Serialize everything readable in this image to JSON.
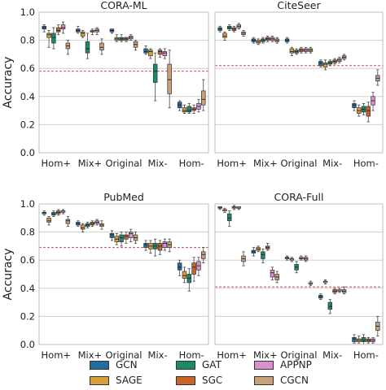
{
  "figure": {
    "ylabel": "Accuracy",
    "xticks": [
      "Hom+",
      "Mix+",
      "Original",
      "Mix-",
      "Hom-"
    ],
    "yticks": [
      "0.0",
      "0.2",
      "0.4",
      "0.6",
      "0.8",
      "1.0"
    ],
    "reference_line_color": "#c44e52"
  },
  "legend": [
    {
      "name": "GCN",
      "color": "#1f6e9c"
    },
    {
      "name": "GAT",
      "color": "#1b8a6b"
    },
    {
      "name": "APPNP",
      "color": "#d98fd0"
    },
    {
      "name": "SAGE",
      "color": "#d9a03a"
    },
    {
      "name": "SGC",
      "color": "#c86428"
    },
    {
      "name": "CGCN",
      "color": "#caa07a"
    }
  ],
  "chart_data": [
    {
      "type": "box",
      "title": "CORA-ML",
      "ylim": [
        0,
        1
      ],
      "ylabel": "Accuracy",
      "categories": [
        "Hom+",
        "Mix+",
        "Original",
        "Mix-",
        "Hom-"
      ],
      "reference_line": 0.58,
      "series": [
        {
          "name": "GCN",
          "boxes": [
            [
              0.86,
              0.88,
              0.89,
              0.9,
              0.91
            ],
            [
              0.85,
              0.86,
              0.87,
              0.88,
              0.9
            ],
            [
              0.85,
              0.86,
              0.87,
              0.88,
              0.88
            ],
            [
              0.7,
              0.71,
              0.72,
              0.74,
              0.76
            ],
            [
              0.3,
              0.32,
              0.34,
              0.36,
              0.37
            ]
          ]
        },
        {
          "name": "SAGE",
          "boxes": [
            [
              0.75,
              0.82,
              0.84,
              0.85,
              0.87
            ],
            [
              0.82,
              0.83,
              0.85,
              0.86,
              0.87
            ],
            [
              0.79,
              0.8,
              0.81,
              0.82,
              0.84
            ],
            [
              0.67,
              0.69,
              0.72,
              0.73,
              0.74
            ],
            [
              0.28,
              0.29,
              0.3,
              0.32,
              0.34
            ]
          ]
        },
        {
          "name": "GAT",
          "boxes": [
            [
              0.74,
              0.78,
              0.82,
              0.85,
              0.89
            ],
            [
              0.67,
              0.71,
              0.74,
              0.79,
              0.85
            ],
            [
              0.79,
              0.8,
              0.81,
              0.82,
              0.84
            ],
            [
              0.37,
              0.5,
              0.58,
              0.63,
              0.71
            ],
            [
              0.28,
              0.29,
              0.3,
              0.33,
              0.35
            ]
          ]
        },
        {
          "name": "SGC",
          "boxes": [
            [
              0.84,
              0.86,
              0.87,
              0.89,
              0.91
            ],
            [
              0.84,
              0.86,
              0.86,
              0.87,
              0.88
            ],
            [
              0.79,
              0.8,
              0.81,
              0.82,
              0.82
            ],
            [
              0.68,
              0.7,
              0.72,
              0.73,
              0.74
            ],
            [
              0.28,
              0.3,
              0.31,
              0.32,
              0.34
            ]
          ]
        },
        {
          "name": "APPNP",
          "boxes": [
            [
              0.85,
              0.88,
              0.89,
              0.91,
              0.93
            ],
            [
              0.84,
              0.86,
              0.87,
              0.88,
              0.89
            ],
            [
              0.8,
              0.81,
              0.82,
              0.83,
              0.84
            ],
            [
              0.67,
              0.69,
              0.71,
              0.72,
              0.74
            ],
            [
              0.29,
              0.31,
              0.33,
              0.35,
              0.38
            ]
          ]
        },
        {
          "name": "CGCN",
          "boxes": [
            [
              0.7,
              0.74,
              0.76,
              0.78,
              0.8
            ],
            [
              0.7,
              0.73,
              0.75,
              0.78,
              0.81
            ],
            [
              0.73,
              0.75,
              0.77,
              0.79,
              0.8
            ],
            [
              0.32,
              0.42,
              0.52,
              0.63,
              0.73
            ],
            [
              0.3,
              0.34,
              0.38,
              0.44,
              0.52
            ]
          ]
        }
      ]
    },
    {
      "type": "box",
      "title": "CiteSeer",
      "ylim": [
        0,
        1
      ],
      "categories": [
        "Hom+",
        "Mix+",
        "Original",
        "Mix-",
        "Hom-"
      ],
      "reference_line": 0.62,
      "series": [
        {
          "name": "GCN",
          "boxes": [
            [
              0.86,
              0.87,
              0.88,
              0.89,
              0.9
            ],
            [
              0.78,
              0.79,
              0.8,
              0.81,
              0.82
            ],
            [
              0.78,
              0.79,
              0.8,
              0.81,
              0.82
            ],
            [
              0.61,
              0.62,
              0.64,
              0.65,
              0.66
            ],
            [
              0.3,
              0.32,
              0.34,
              0.35,
              0.37
            ]
          ]
        },
        {
          "name": "SAGE",
          "boxes": [
            [
              0.8,
              0.82,
              0.83,
              0.85,
              0.86
            ],
            [
              0.77,
              0.78,
              0.79,
              0.8,
              0.81
            ],
            [
              0.69,
              0.71,
              0.72,
              0.74,
              0.75
            ],
            [
              0.59,
              0.61,
              0.63,
              0.64,
              0.66
            ],
            [
              0.26,
              0.28,
              0.3,
              0.32,
              0.34
            ]
          ]
        },
        {
          "name": "GAT",
          "boxes": [
            [
              0.87,
              0.88,
              0.89,
              0.9,
              0.91
            ],
            [
              0.78,
              0.79,
              0.8,
              0.81,
              0.82
            ],
            [
              0.7,
              0.71,
              0.72,
              0.73,
              0.74
            ],
            [
              0.62,
              0.63,
              0.64,
              0.65,
              0.66
            ],
            [
              0.27,
              0.29,
              0.31,
              0.33,
              0.35
            ]
          ]
        },
        {
          "name": "SGC",
          "boxes": [
            [
              0.86,
              0.87,
              0.88,
              0.89,
              0.9
            ],
            [
              0.79,
              0.8,
              0.81,
              0.82,
              0.83
            ],
            [
              0.71,
              0.72,
              0.73,
              0.74,
              0.75
            ],
            [
              0.63,
              0.64,
              0.65,
              0.66,
              0.67
            ],
            [
              0.22,
              0.26,
              0.3,
              0.33,
              0.36
            ]
          ]
        },
        {
          "name": "APPNP",
          "boxes": [
            [
              0.88,
              0.89,
              0.9,
              0.91,
              0.92
            ],
            [
              0.79,
              0.8,
              0.81,
              0.82,
              0.83
            ],
            [
              0.71,
              0.72,
              0.73,
              0.74,
              0.75
            ],
            [
              0.64,
              0.65,
              0.66,
              0.67,
              0.68
            ],
            [
              0.3,
              0.34,
              0.37,
              0.4,
              0.43
            ]
          ]
        },
        {
          "name": "CGCN",
          "boxes": [
            [
              0.83,
              0.84,
              0.85,
              0.86,
              0.87
            ],
            [
              0.78,
              0.79,
              0.8,
              0.81,
              0.82
            ],
            [
              0.71,
              0.72,
              0.73,
              0.74,
              0.75
            ],
            [
              0.66,
              0.67,
              0.68,
              0.69,
              0.7
            ],
            [
              0.48,
              0.51,
              0.53,
              0.55,
              0.59
            ]
          ]
        }
      ]
    },
    {
      "type": "box",
      "title": "PubMed",
      "ylim": [
        0,
        1
      ],
      "ylabel": "Accuracy",
      "categories": [
        "Hom+",
        "Mix+",
        "Original",
        "Mix-",
        "Hom-"
      ],
      "reference_line": 0.69,
      "series": [
        {
          "name": "GCN",
          "boxes": [
            [
              0.92,
              0.93,
              0.94,
              0.94,
              0.95
            ],
            [
              0.84,
              0.85,
              0.86,
              0.87,
              0.88
            ],
            [
              0.74,
              0.76,
              0.78,
              0.79,
              0.81
            ],
            [
              0.67,
              0.69,
              0.71,
              0.72,
              0.74
            ],
            [
              0.49,
              0.53,
              0.55,
              0.58,
              0.6
            ]
          ]
        },
        {
          "name": "SAGE",
          "boxes": [
            [
              0.85,
              0.87,
              0.88,
              0.9,
              0.91
            ],
            [
              0.8,
              0.82,
              0.83,
              0.85,
              0.86
            ],
            [
              0.71,
              0.73,
              0.75,
              0.77,
              0.79
            ],
            [
              0.65,
              0.68,
              0.7,
              0.72,
              0.74
            ],
            [
              0.44,
              0.47,
              0.49,
              0.52,
              0.55
            ]
          ]
        },
        {
          "name": "GAT",
          "boxes": [
            [
              0.91,
              0.92,
              0.93,
              0.94,
              0.95
            ],
            [
              0.83,
              0.84,
              0.85,
              0.86,
              0.87
            ],
            [
              0.7,
              0.73,
              0.76,
              0.78,
              0.8
            ],
            [
              0.63,
              0.68,
              0.7,
              0.72,
              0.75
            ],
            [
              0.38,
              0.44,
              0.47,
              0.5,
              0.54
            ]
          ]
        },
        {
          "name": "SGC",
          "boxes": [
            [
              0.92,
              0.93,
              0.94,
              0.95,
              0.96
            ],
            [
              0.84,
              0.85,
              0.86,
              0.87,
              0.88
            ],
            [
              0.72,
              0.75,
              0.77,
              0.78,
              0.8
            ],
            [
              0.64,
              0.67,
              0.7,
              0.72,
              0.74
            ],
            [
              0.45,
              0.5,
              0.55,
              0.58,
              0.62
            ]
          ]
        },
        {
          "name": "APPNP",
          "boxes": [
            [
              0.93,
              0.94,
              0.95,
              0.95,
              0.96
            ],
            [
              0.85,
              0.86,
              0.87,
              0.88,
              0.89
            ],
            [
              0.73,
              0.76,
              0.79,
              0.8,
              0.82
            ],
            [
              0.67,
              0.69,
              0.72,
              0.73,
              0.75
            ],
            [
              0.49,
              0.53,
              0.56,
              0.59,
              0.62
            ]
          ]
        },
        {
          "name": "CGCN",
          "boxes": [
            [
              0.84,
              0.86,
              0.88,
              0.89,
              0.91
            ],
            [
              0.82,
              0.84,
              0.85,
              0.86,
              0.88
            ],
            [
              0.72,
              0.74,
              0.76,
              0.78,
              0.8
            ],
            [
              0.66,
              0.69,
              0.71,
              0.73,
              0.75
            ],
            [
              0.58,
              0.61,
              0.64,
              0.66,
              0.69
            ]
          ]
        }
      ]
    },
    {
      "type": "box",
      "title": "CORA-Full",
      "ylim": [
        0,
        1
      ],
      "categories": [
        "Hom+",
        "Mix+",
        "Original",
        "Mix-",
        "Hom-"
      ],
      "reference_line": 0.41,
      "series": [
        {
          "name": "GCN",
          "boxes": [
            [
              0.96,
              0.97,
              0.97,
              0.98,
              0.98
            ],
            [
              0.63,
              0.65,
              0.66,
              0.67,
              0.69
            ],
            [
              0.6,
              0.61,
              0.62,
              0.62,
              0.63
            ],
            [
              0.32,
              0.33,
              0.34,
              0.35,
              0.36
            ],
            [
              0.01,
              0.02,
              0.04,
              0.05,
              0.07
            ]
          ]
        },
        {
          "name": "SAGE",
          "boxes": [
            [
              0.94,
              0.95,
              0.96,
              0.96,
              0.97
            ],
            [
              0.66,
              0.67,
              0.68,
              0.69,
              0.7
            ],
            [
              0.59,
              0.6,
              0.61,
              0.61,
              0.62
            ],
            [
              0.43,
              0.44,
              0.45,
              0.45,
              0.46
            ],
            [
              0.01,
              0.02,
              0.03,
              0.04,
              0.06
            ]
          ]
        },
        {
          "name": "GAT",
          "boxes": [
            [
              0.84,
              0.88,
              0.9,
              0.93,
              0.95
            ],
            [
              0.58,
              0.61,
              0.64,
              0.66,
              0.68
            ],
            [
              0.51,
              0.53,
              0.55,
              0.57,
              0.59
            ],
            [
              0.22,
              0.25,
              0.27,
              0.3,
              0.32
            ],
            [
              0.0,
              0.02,
              0.03,
              0.05,
              0.07
            ]
          ]
        },
        {
          "name": "SGC",
          "boxes": [
            [
              0.96,
              0.97,
              0.98,
              0.98,
              0.99
            ],
            [
              0.67,
              0.68,
              0.69,
              0.7,
              0.72
            ],
            [
              0.6,
              0.61,
              0.61,
              0.62,
              0.63
            ],
            [
              0.36,
              0.37,
              0.38,
              0.39,
              0.4
            ],
            [
              0.01,
              0.02,
              0.03,
              0.04,
              0.05
            ]
          ]
        },
        {
          "name": "APPNP",
          "boxes": [
            [
              0.96,
              0.97,
              0.97,
              0.98,
              0.98
            ],
            [
              0.46,
              0.48,
              0.51,
              0.53,
              0.55
            ],
            [
              0.59,
              0.6,
              0.61,
              0.62,
              0.63
            ],
            [
              0.37,
              0.38,
              0.38,
              0.39,
              0.4
            ],
            [
              0.01,
              0.02,
              0.03,
              0.04,
              0.05
            ]
          ]
        },
        {
          "name": "CGCN",
          "boxes": [
            [
              0.56,
              0.59,
              0.61,
              0.63,
              0.66
            ],
            [
              0.44,
              0.46,
              0.48,
              0.5,
              0.52
            ],
            [
              0.42,
              0.43,
              0.43,
              0.44,
              0.45
            ],
            [
              0.36,
              0.37,
              0.38,
              0.39,
              0.41
            ],
            [
              0.06,
              0.1,
              0.13,
              0.16,
              0.2
            ]
          ]
        }
      ]
    }
  ]
}
